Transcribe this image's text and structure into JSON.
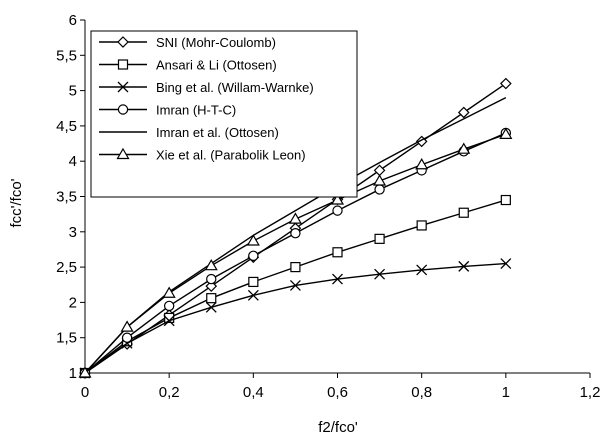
{
  "chart_data": {
    "type": "line",
    "xlabel": "f2/fco'",
    "ylabel": "fcc'/fco'",
    "xlim": [
      0,
      1.2
    ],
    "ylim": [
      1,
      6
    ],
    "x_ticks": [
      "0",
      "0,2",
      "0,4",
      "0,6",
      "0,8",
      "1",
      "1,2"
    ],
    "y_ticks": [
      "1",
      "1,5",
      "2",
      "2,5",
      "3",
      "3,5",
      "4",
      "4,5",
      "5",
      "5,5",
      "6"
    ],
    "x_tick_values": [
      0,
      0.2,
      0.4,
      0.6,
      0.8,
      1.0,
      1.2
    ],
    "y_tick_values": [
      1,
      1.5,
      2,
      2.5,
      3,
      3.5,
      4,
      4.5,
      5,
      5.5,
      6
    ],
    "grid": false,
    "legend_position": "top-left",
    "series": [
      {
        "name": "SNI (Mohr-Coulomb)",
        "marker": "diamond",
        "x": [
          0,
          0.1,
          0.2,
          0.3,
          0.4,
          0.5,
          0.6,
          0.7,
          0.8,
          0.9,
          1.0
        ],
        "y": [
          1.0,
          1.41,
          1.82,
          2.23,
          2.64,
          3.05,
          3.46,
          3.87,
          4.28,
          4.69,
          5.1
        ]
      },
      {
        "name": "Ansari & Li (Ottosen)",
        "marker": "square",
        "x": [
          0,
          0.1,
          0.2,
          0.3,
          0.4,
          0.5,
          0.6,
          0.7,
          0.8,
          0.9,
          1.0
        ],
        "y": [
          1.0,
          1.45,
          1.78,
          2.06,
          2.29,
          2.5,
          2.71,
          2.9,
          3.09,
          3.27,
          3.45
        ]
      },
      {
        "name": "Bing et al. (Willam-Warnke)",
        "marker": "cross",
        "x": [
          0,
          0.1,
          0.2,
          0.3,
          0.4,
          0.5,
          0.6,
          0.7,
          0.8,
          0.9,
          1.0
        ],
        "y": [
          1.0,
          1.42,
          1.74,
          1.93,
          2.1,
          2.24,
          2.33,
          2.4,
          2.46,
          2.51,
          2.55
        ]
      },
      {
        "name": "Imran (H-T-C)",
        "marker": "circle",
        "x": [
          0,
          0.1,
          0.2,
          0.3,
          0.4,
          0.5,
          0.6,
          0.7,
          0.8,
          0.9,
          1.0
        ],
        "y": [
          1.0,
          1.5,
          1.95,
          2.33,
          2.66,
          2.98,
          3.3,
          3.6,
          3.87,
          4.14,
          4.4
        ]
      },
      {
        "name": "Imran et al. (Ottosen)",
        "marker": "none",
        "x": [
          0,
          0.1,
          0.2,
          0.3,
          0.4,
          0.5,
          0.6,
          0.7,
          0.8,
          0.9,
          1.0
        ],
        "y": [
          1.0,
          1.65,
          2.15,
          2.55,
          2.95,
          3.3,
          3.65,
          3.98,
          4.3,
          4.6,
          4.9
        ]
      },
      {
        "name": "Xie et al. (Parabolik Leon)",
        "marker": "triangle",
        "x": [
          0,
          0.1,
          0.2,
          0.3,
          0.4,
          0.5,
          0.6,
          0.7,
          0.8,
          0.9,
          1.0
        ],
        "y": [
          1.0,
          1.65,
          2.13,
          2.52,
          2.87,
          3.18,
          3.45,
          3.72,
          3.95,
          4.17,
          4.38
        ]
      }
    ]
  }
}
